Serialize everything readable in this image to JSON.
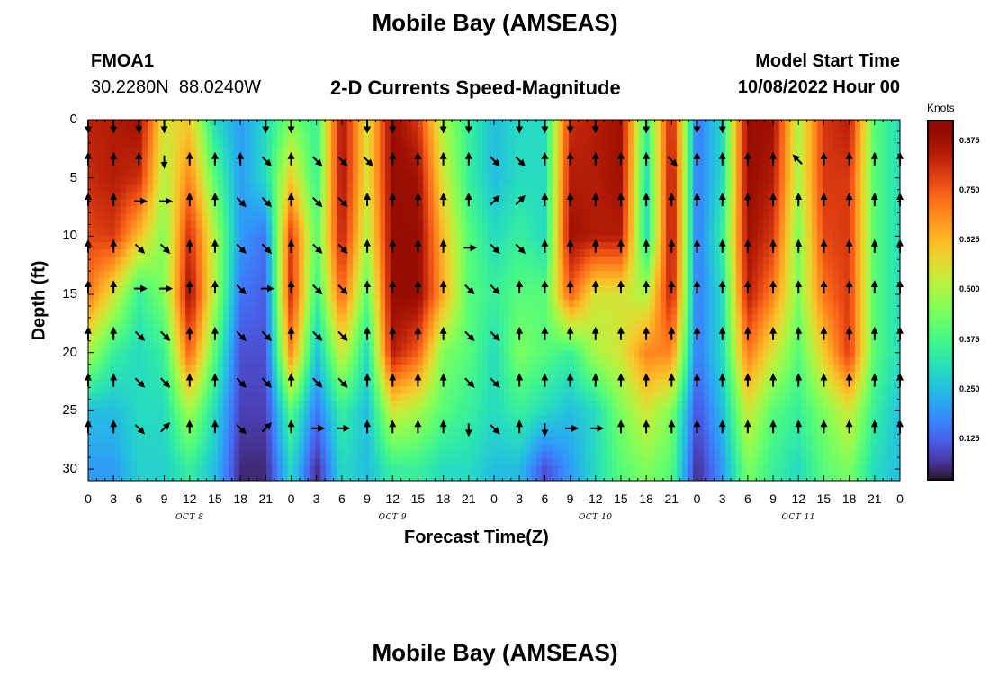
{
  "page": {
    "title": "Mobile Bay (AMSEAS)",
    "footer_title": "Mobile Bay (AMSEAS)"
  },
  "header": {
    "station_id": "FMOA1",
    "station_coords": "30.2280N  88.0240W",
    "plot_title": "2-D Currents Speed-Magnitude",
    "model_label": "Model Start Time",
    "model_time": "10/08/2022 Hour 00"
  },
  "chart_data": {
    "type": "heatmap",
    "title": "2-D Currents Speed-Magnitude",
    "xlabel": "Forecast Time(Z)",
    "ylabel": "Depth (ft)",
    "x_unit": "hours from 10/08/2022 00Z",
    "xlim": [
      0,
      96
    ],
    "ylim": [
      0,
      31
    ],
    "y_inverted": true,
    "x_ticks": [
      0,
      3,
      6,
      9,
      12,
      15,
      18,
      21,
      24,
      27,
      30,
      33,
      36,
      39,
      42,
      45,
      48,
      51,
      54,
      57,
      60,
      63,
      66,
      69,
      72,
      75,
      78,
      81,
      84,
      87,
      90,
      93,
      96
    ],
    "x_tick_labels": [
      "0",
      "3",
      "6",
      "9",
      "12",
      "15",
      "18",
      "21",
      "0",
      "3",
      "6",
      "9",
      "12",
      "15",
      "18",
      "21",
      "0",
      "3",
      "6",
      "9",
      "12",
      "15",
      "18",
      "21",
      "0",
      "3",
      "6",
      "9",
      "12",
      "15",
      "18",
      "21",
      "0"
    ],
    "date_labels": [
      {
        "label": "OCT 8",
        "hour": 12
      },
      {
        "label": "OCT 9",
        "hour": 36
      },
      {
        "label": "OCT 10",
        "hour": 60
      },
      {
        "label": "OCT 11",
        "hour": 84
      }
    ],
    "y_ticks": [
      0,
      5,
      10,
      15,
      20,
      25,
      30
    ],
    "y_tick_labels": [
      "0",
      "5",
      "10",
      "15",
      "20",
      "25",
      "30"
    ],
    "colorbar": {
      "label": "Knots",
      "range": [
        0.02,
        0.93
      ],
      "ticks": [
        0.125,
        0.25,
        0.375,
        0.5,
        0.625,
        0.75,
        0.875
      ],
      "tick_labels": [
        "0.125",
        "0.250",
        "0.375",
        "0.500",
        "0.625",
        "0.750",
        "0.875"
      ],
      "colormap": "turbo"
    },
    "speed_grid": {
      "hours": [
        0,
        3,
        6,
        9,
        12,
        15,
        18,
        21,
        24,
        27,
        30,
        33,
        36,
        39,
        42,
        45,
        48,
        51,
        54,
        57,
        60,
        63,
        66,
        69,
        72,
        75,
        78,
        81,
        84,
        87,
        90,
        93,
        96
      ],
      "depths_ft": [
        0,
        5,
        10,
        15,
        20,
        25,
        30
      ],
      "values": [
        [
          0.84,
          0.85,
          0.88,
          0.55,
          0.6,
          0.3,
          0.2,
          0.3,
          0.45,
          0.35,
          0.88,
          0.55,
          0.9,
          0.8,
          0.5,
          0.35,
          0.25,
          0.3,
          0.3,
          0.82,
          0.85,
          0.88,
          0.35,
          0.85,
          0.15,
          0.3,
          0.9,
          0.88,
          0.5,
          0.8,
          0.85,
          0.4,
          0.3
        ],
        [
          0.82,
          0.85,
          0.82,
          0.5,
          0.7,
          0.4,
          0.2,
          0.3,
          0.6,
          0.35,
          0.88,
          0.55,
          0.9,
          0.88,
          0.55,
          0.35,
          0.25,
          0.3,
          0.3,
          0.85,
          0.85,
          0.88,
          0.3,
          0.88,
          0.15,
          0.3,
          0.9,
          0.85,
          0.5,
          0.8,
          0.8,
          0.4,
          0.3
        ],
        [
          0.78,
          0.8,
          0.62,
          0.45,
          0.82,
          0.5,
          0.2,
          0.15,
          0.8,
          0.4,
          0.85,
          0.5,
          0.9,
          0.9,
          0.62,
          0.4,
          0.3,
          0.35,
          0.3,
          0.88,
          0.85,
          0.85,
          0.3,
          0.88,
          0.15,
          0.35,
          0.88,
          0.8,
          0.45,
          0.78,
          0.8,
          0.4,
          0.3
        ],
        [
          0.72,
          0.55,
          0.35,
          0.45,
          0.88,
          0.5,
          0.15,
          0.12,
          0.82,
          0.35,
          0.75,
          0.4,
          0.9,
          0.9,
          0.65,
          0.4,
          0.35,
          0.4,
          0.4,
          0.75,
          0.55,
          0.55,
          0.5,
          0.85,
          0.15,
          0.3,
          0.85,
          0.7,
          0.45,
          0.72,
          0.8,
          0.4,
          0.3
        ],
        [
          0.5,
          0.35,
          0.3,
          0.35,
          0.75,
          0.4,
          0.1,
          0.1,
          0.7,
          0.25,
          0.55,
          0.3,
          0.85,
          0.75,
          0.45,
          0.4,
          0.3,
          0.45,
          0.4,
          0.35,
          0.5,
          0.55,
          0.7,
          0.7,
          0.15,
          0.3,
          0.72,
          0.55,
          0.4,
          0.6,
          0.8,
          0.4,
          0.3
        ],
        [
          0.25,
          0.25,
          0.3,
          0.3,
          0.5,
          0.3,
          0.08,
          0.08,
          0.4,
          0.15,
          0.35,
          0.25,
          0.55,
          0.5,
          0.4,
          0.35,
          0.3,
          0.35,
          0.3,
          0.25,
          0.3,
          0.45,
          0.55,
          0.45,
          0.1,
          0.25,
          0.55,
          0.4,
          0.35,
          0.45,
          0.55,
          0.35,
          0.25
        ],
        [
          0.2,
          0.2,
          0.28,
          0.28,
          0.35,
          0.25,
          0.05,
          0.05,
          0.3,
          0.05,
          0.3,
          0.25,
          0.35,
          0.35,
          0.3,
          0.3,
          0.25,
          0.25,
          0.1,
          0.2,
          0.3,
          0.4,
          0.45,
          0.4,
          0.05,
          0.2,
          0.45,
          0.35,
          0.3,
          0.4,
          0.45,
          0.3,
          0.25
        ]
      ]
    },
    "direction_vectors": {
      "hours": [
        0,
        3,
        6,
        9,
        12,
        15,
        18,
        21,
        24,
        27,
        30,
        33,
        36,
        39,
        42,
        45,
        48,
        51,
        54,
        57,
        60,
        63,
        66,
        69,
        72,
        75,
        78,
        81,
        84,
        87,
        90,
        93,
        96
      ],
      "depths_ft": [
        0,
        3.5,
        7,
        11,
        14.5,
        18.5,
        22.5,
        26.5
      ],
      "direction_deg_clockwise_from_north": [
        [
          180,
          180,
          180,
          180,
          null,
          null,
          null,
          180,
          180,
          null,
          null,
          180,
          180,
          null,
          180,
          180,
          null,
          180,
          180,
          180,
          180,
          null,
          180,
          null,
          180,
          180,
          null,
          null,
          null,
          null,
          null,
          null,
          null
        ],
        [
          0,
          0,
          0,
          180,
          0,
          0,
          0,
          135,
          0,
          135,
          135,
          135,
          0,
          0,
          0,
          0,
          135,
          135,
          0,
          0,
          0,
          0,
          0,
          135,
          0,
          0,
          0,
          0,
          315,
          0,
          0,
          0,
          0
        ],
        [
          0,
          0,
          90,
          90,
          0,
          0,
          135,
          135,
          0,
          135,
          135,
          0,
          0,
          0,
          0,
          0,
          45,
          45,
          0,
          0,
          0,
          0,
          0,
          0,
          0,
          0,
          0,
          0,
          0,
          0,
          0,
          0,
          0
        ],
        [
          0,
          0,
          135,
          135,
          0,
          0,
          135,
          135,
          0,
          135,
          135,
          0,
          0,
          0,
          0,
          90,
          135,
          135,
          0,
          0,
          0,
          0,
          0,
          0,
          0,
          0,
          0,
          0,
          0,
          0,
          0,
          0,
          0
        ],
        [
          0,
          0,
          90,
          90,
          0,
          0,
          135,
          90,
          0,
          135,
          135,
          0,
          0,
          0,
          0,
          135,
          135,
          0,
          0,
          0,
          0,
          0,
          0,
          0,
          0,
          0,
          0,
          0,
          0,
          0,
          0,
          0,
          0
        ],
        [
          0,
          0,
          135,
          135,
          0,
          0,
          135,
          135,
          0,
          135,
          135,
          0,
          0,
          0,
          0,
          135,
          135,
          0,
          0,
          0,
          0,
          0,
          0,
          0,
          0,
          0,
          0,
          0,
          0,
          0,
          0,
          0,
          0
        ],
        [
          0,
          0,
          135,
          135,
          0,
          0,
          135,
          135,
          0,
          135,
          135,
          0,
          0,
          0,
          0,
          135,
          135,
          0,
          0,
          0,
          0,
          0,
          0,
          0,
          0,
          0,
          0,
          0,
          0,
          0,
          0,
          0,
          0
        ],
        [
          0,
          0,
          135,
          45,
          0,
          0,
          135,
          45,
          0,
          90,
          90,
          0,
          0,
          0,
          0,
          180,
          135,
          0,
          180,
          90,
          90,
          0,
          0,
          0,
          0,
          0,
          0,
          0,
          0,
          0,
          0,
          0,
          0
        ]
      ]
    }
  }
}
